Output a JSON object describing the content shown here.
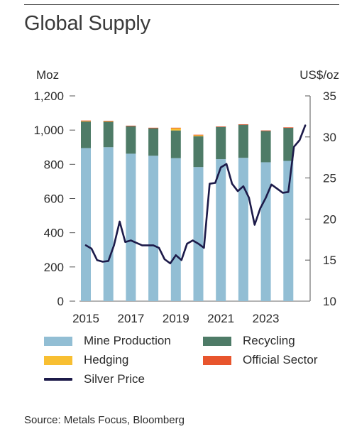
{
  "header": {
    "title": "Global Supply"
  },
  "chart_data": {
    "type": "bar",
    "stacked": true,
    "categories": [
      "2015",
      "2016",
      "2017",
      "2018",
      "2019",
      "2020",
      "2021",
      "2022",
      "2023",
      "2024"
    ],
    "x_tick_labels": [
      "2015",
      "2017",
      "2019",
      "2021",
      "2023"
    ],
    "y_left": {
      "unit": "Moz",
      "range": [
        0,
        1200
      ],
      "ticks": [
        "0",
        "200",
        "400",
        "600",
        "800",
        "1,000",
        "1,200"
      ]
    },
    "y_right": {
      "unit": "US$/oz",
      "range": [
        10,
        35
      ],
      "ticks": [
        "10",
        "15",
        "20",
        "25",
        "30",
        "35"
      ]
    },
    "series": [
      {
        "name": "Mine Production",
        "color": "#92bed4",
        "values": [
          895,
          900,
          862,
          850,
          836,
          784,
          830,
          838,
          812,
          820
        ]
      },
      {
        "name": "Recycling",
        "color": "#4e7b67",
        "values": [
          155,
          150,
          162,
          162,
          162,
          180,
          190,
          195,
          185,
          195
        ]
      },
      {
        "name": "Hedging",
        "color": "#f8bf32",
        "values": [
          4,
          2,
          0,
          0,
          15,
          8,
          0,
          0,
          0,
          0
        ]
      },
      {
        "name": "Official Sector",
        "color": "#e8552d",
        "values": [
          2,
          2,
          2,
          2,
          1,
          1,
          1,
          1,
          1,
          1
        ]
      }
    ],
    "line_series": {
      "name": "Silver Price",
      "color": "#1c1a49",
      "axis": "right",
      "x": [
        2015.0,
        2015.25,
        2015.5,
        2015.75,
        2016.0,
        2016.25,
        2016.5,
        2016.75,
        2017.0,
        2017.25,
        2017.5,
        2017.75,
        2018.0,
        2018.25,
        2018.5,
        2018.75,
        2019.0,
        2019.25,
        2019.5,
        2019.75,
        2020.0,
        2020.25,
        2020.5,
        2020.75,
        2021.0,
        2021.25,
        2021.5,
        2021.75,
        2022.0,
        2022.25,
        2022.5,
        2022.75,
        2023.0,
        2023.25,
        2023.5,
        2023.75,
        2024.0,
        2024.25,
        2024.5,
        2024.75
      ],
      "y": [
        16.8,
        16.4,
        15.0,
        14.8,
        14.9,
        16.8,
        19.7,
        17.2,
        17.4,
        17.1,
        16.8,
        16.8,
        16.8,
        16.5,
        15.1,
        14.6,
        15.6,
        15.0,
        17.0,
        17.4,
        17.0,
        16.5,
        24.3,
        24.4,
        26.3,
        26.7,
        24.3,
        23.4,
        24.0,
        22.6,
        19.3,
        21.3,
        22.6,
        24.2,
        23.7,
        23.2,
        23.3,
        28.8,
        29.6,
        31.4
      ]
    },
    "legend_position": "bottom",
    "grid": false,
    "source": "Source: Metals Focus, Bloomberg"
  }
}
